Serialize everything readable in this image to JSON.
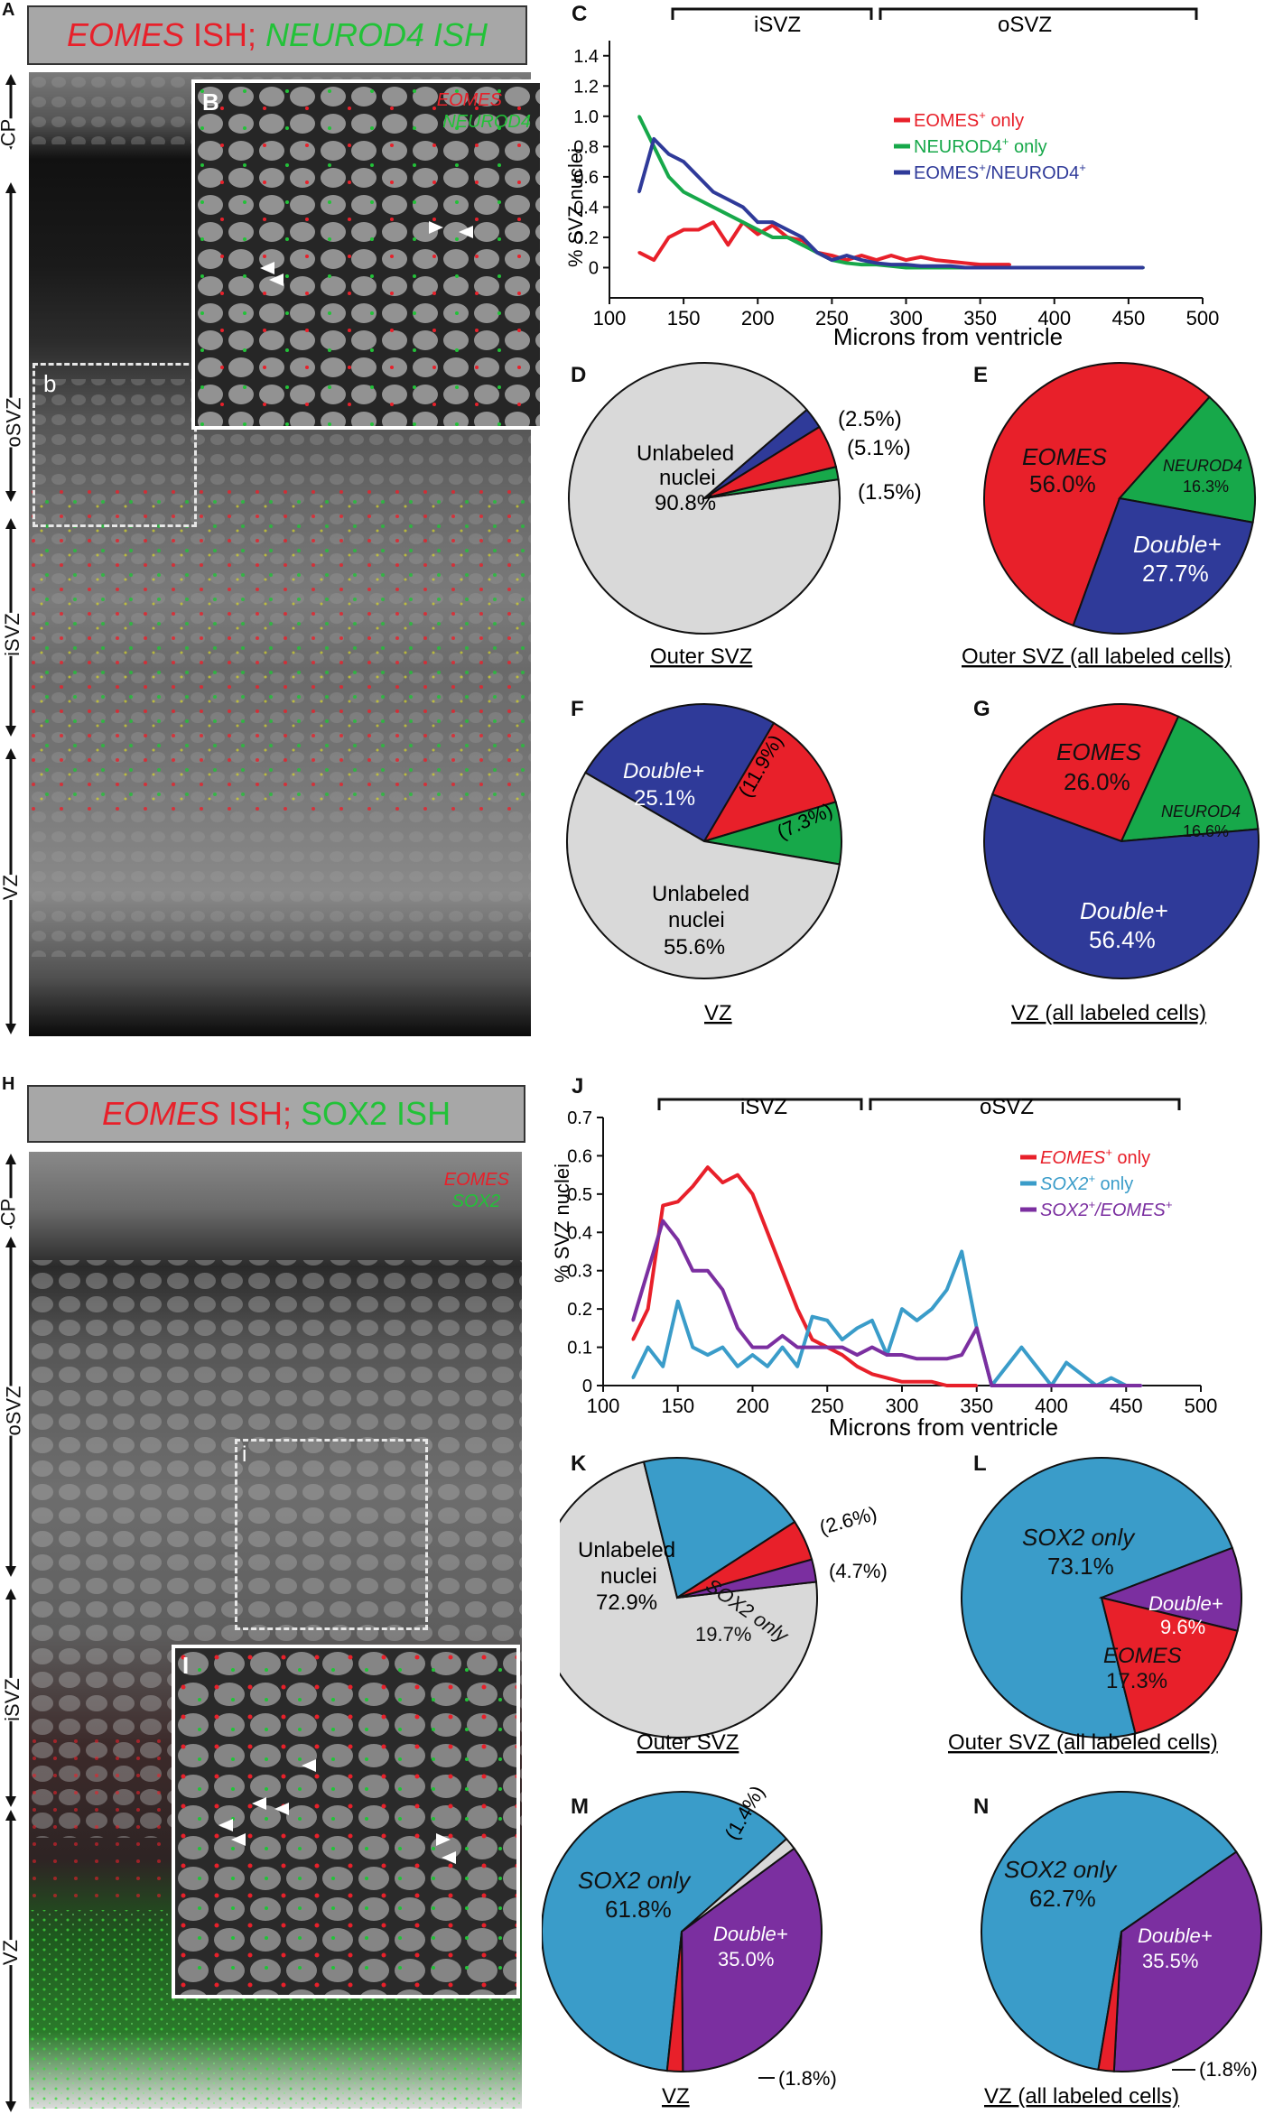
{
  "panelA": {
    "letter": "A",
    "title_part1": "EOMES",
    "title_part2": " ISH; ",
    "title_part3": "NEUROD4 ISH",
    "layers": [
      "CP",
      "oSVZ",
      "iSVZ",
      "VZ"
    ],
    "inset_box_label": "b"
  },
  "panelB": {
    "letter": "B",
    "legend_red": "EOMES",
    "legend_green": "NEUROD4"
  },
  "panelC": {
    "letter": "C",
    "region_left": "iSVZ",
    "region_right": "oSVZ",
    "ylabel": "% SVZ nuclei",
    "xlabel": "Microns from ventricle",
    "xticks": [
      "100",
      "150",
      "200",
      "250",
      "300",
      "350",
      "400",
      "450",
      "500"
    ],
    "yticks": [
      "0",
      "0.2",
      "0.4",
      "0.6",
      "0.8",
      "1.0",
      "1.2",
      "1.4"
    ],
    "legend": [
      "EOMES+ only",
      "NEUROD4+ only",
      "EOMES+/NEUROD4+"
    ]
  },
  "panelD": {
    "letter": "D",
    "unlabeled": "Unlabeled",
    "nuclei": "nuclei",
    "pct_unlabeled": "90.8%",
    "callouts": [
      "(2.5%)",
      "(5.1%)",
      "(1.5%)"
    ],
    "caption": "Outer SVZ"
  },
  "panelE": {
    "letter": "E",
    "eomes": "EOMES",
    "eomes_pct": "56.0%",
    "neurod4": "NEUROD4",
    "neurod4_pct": "16.3%",
    "double": "Double+",
    "double_pct": "27.7%",
    "caption": "Outer SVZ (all labeled cells)"
  },
  "panelF": {
    "letter": "F",
    "double": "Double+",
    "double_pct": "25.1%",
    "red_pct": "(11.9%)",
    "green_pct": "(7.3%)",
    "unlabeled": "Unlabeled",
    "nuclei": "nuclei",
    "pct_unlabeled": "55.6%",
    "caption": "VZ"
  },
  "panelG": {
    "letter": "G",
    "eomes": "EOMES",
    "eomes_pct": "26.0%",
    "neurod4": "NEUROD4",
    "neurod4_pct": "16.6%",
    "double": "Double+",
    "double_pct": "56.4%",
    "caption": "VZ (all labeled cells)"
  },
  "panelH": {
    "letter": "H",
    "title_part1": "EOMES",
    "title_part2": " ISH; ",
    "title_part3": "SOX2 ISH",
    "legend_red": "EOMES",
    "legend_green": "SOX2",
    "layers": [
      "CP",
      "oSVZ",
      "iSVZ",
      "VZ"
    ],
    "inset_box_label": "i"
  },
  "panelI": {
    "letter": "I"
  },
  "panelJ": {
    "letter": "J",
    "region_left": "iSVZ",
    "region_right": "oSVZ",
    "ylabel": "% SVZ nuclei",
    "xlabel": "Microns from ventricle",
    "xticks": [
      "100",
      "150",
      "200",
      "250",
      "300",
      "350",
      "400",
      "450",
      "500"
    ],
    "yticks": [
      "0",
      "0.1",
      "0.2",
      "0.3",
      "0.4",
      "0.5",
      "0.6",
      "0.7"
    ],
    "legend": [
      "EOMES+ only",
      "SOX2+ only",
      "SOX2+/EOMES+"
    ]
  },
  "panelK": {
    "letter": "K",
    "unlabeled": "Unlabeled",
    "nuclei": "nuclei",
    "pct_unlabeled": "72.9%",
    "sox2": "SOX2 only",
    "sox2_pct": "19.7%",
    "callouts": [
      "(2.6%)",
      "(4.7%)"
    ],
    "caption": "Outer SVZ"
  },
  "panelL": {
    "letter": "L",
    "sox2": "SOX2 only",
    "sox2_pct": "73.1%",
    "double": "Double+",
    "double_pct": "9.6%",
    "eomes": "EOMES",
    "eomes_pct": "17.3%",
    "caption": "Outer SVZ (all labeled cells)"
  },
  "panelM": {
    "letter": "M",
    "sox2": "SOX2 only",
    "sox2_pct": "61.8%",
    "double": "Double+",
    "double_pct": "35.0%",
    "grey_pct": "(1.4%)",
    "red_pct": "(1.8%)",
    "caption": "VZ"
  },
  "panelN": {
    "letter": "N",
    "sox2": "SOX2 only",
    "sox2_pct": "62.7%",
    "double": "Double+",
    "double_pct": "35.5%",
    "red_pct": "(1.8%)",
    "caption": "VZ (all labeled cells)"
  },
  "colors": {
    "red": "#e8202a",
    "green": "#17a84a",
    "blue": "#2f3a99",
    "grey": "#d9d9d9",
    "teal": "#3a9cc9",
    "purple": "#7b2fa0"
  },
  "chart_data": [
    {
      "type": "line",
      "panel": "C",
      "xlabel": "Microns from ventricle",
      "ylabel": "% SVZ nuclei",
      "xlim": [
        100,
        500
      ],
      "ylim": [
        -0.2,
        1.5
      ],
      "series": [
        {
          "name": "EOMES+ only",
          "x": [
            120,
            130,
            140,
            150,
            160,
            170,
            180,
            190,
            200,
            210,
            220,
            230,
            240,
            250,
            260,
            270,
            280,
            290,
            300,
            310,
            320,
            330,
            340,
            350,
            360,
            370
          ],
          "values": [
            0.1,
            0.05,
            0.2,
            0.25,
            0.25,
            0.3,
            0.15,
            0.3,
            0.22,
            0.28,
            0.2,
            0.18,
            0.1,
            0.08,
            0.05,
            0.08,
            0.05,
            0.08,
            0.05,
            0.07,
            0.05,
            0.04,
            0.03,
            0.02,
            0.02,
            0.02
          ]
        },
        {
          "name": "NEUROD4+ only",
          "x": [
            120,
            130,
            140,
            150,
            160,
            170,
            180,
            190,
            200,
            210,
            220,
            230,
            240,
            250,
            260,
            270,
            280,
            290,
            300,
            310,
            320,
            330,
            340,
            350,
            360,
            370,
            380,
            390,
            400,
            420,
            440,
            460
          ],
          "values": [
            1.0,
            0.8,
            0.6,
            0.5,
            0.45,
            0.4,
            0.35,
            0.3,
            0.25,
            0.2,
            0.2,
            0.15,
            0.1,
            0.05,
            0.03,
            0.02,
            0.02,
            0.01,
            0,
            0,
            0,
            0,
            0,
            0,
            0,
            0,
            0,
            0,
            0,
            0,
            0,
            0
          ]
        },
        {
          "name": "EOMES+/NEUROD4+",
          "x": [
            120,
            130,
            140,
            150,
            160,
            170,
            180,
            190,
            200,
            210,
            220,
            230,
            240,
            250,
            260,
            270,
            280,
            290,
            300,
            310,
            320,
            330,
            340,
            350,
            360,
            370,
            380,
            390,
            400,
            420,
            440,
            460
          ],
          "values": [
            0.5,
            0.85,
            0.75,
            0.7,
            0.6,
            0.5,
            0.45,
            0.4,
            0.3,
            0.3,
            0.25,
            0.2,
            0.1,
            0.05,
            0.08,
            0.05,
            0.03,
            0.02,
            0.02,
            0.01,
            0.01,
            0.01,
            0,
            0,
            0,
            0,
            0,
            0,
            0,
            0,
            0,
            0
          ]
        }
      ]
    },
    {
      "type": "pie",
      "panel": "D",
      "labels": [
        "Unlabeled nuclei",
        "EOMES+/NEUROD4+",
        "EOMES+ only",
        "NEUROD4+ only"
      ],
      "values": [
        90.8,
        2.5,
        5.1,
        1.5
      ]
    },
    {
      "type": "pie",
      "panel": "E",
      "labels": [
        "EOMES",
        "NEUROD4",
        "Double+"
      ],
      "values": [
        56.0,
        16.3,
        27.7
      ]
    },
    {
      "type": "pie",
      "panel": "F",
      "labels": [
        "Double+",
        "EOMES only",
        "NEUROD4 only",
        "Unlabeled nuclei"
      ],
      "values": [
        25.1,
        11.9,
        7.3,
        55.6
      ]
    },
    {
      "type": "pie",
      "panel": "G",
      "labels": [
        "EOMES",
        "NEUROD4",
        "Double+"
      ],
      "values": [
        26.0,
        16.6,
        56.4
      ]
    },
    {
      "type": "line",
      "panel": "J",
      "xlabel": "Microns from ventricle",
      "ylabel": "% SVZ nuclei",
      "xlim": [
        100,
        500
      ],
      "ylim": [
        0,
        0.7
      ],
      "series": [
        {
          "name": "EOMES+ only",
          "x": [
            120,
            130,
            140,
            150,
            160,
            170,
            180,
            190,
            200,
            210,
            220,
            230,
            240,
            250,
            260,
            270,
            280,
            290,
            300,
            310,
            320,
            330,
            340,
            350
          ],
          "values": [
            0.12,
            0.2,
            0.47,
            0.48,
            0.52,
            0.57,
            0.53,
            0.55,
            0.5,
            0.4,
            0.3,
            0.2,
            0.12,
            0.1,
            0.08,
            0.05,
            0.03,
            0.02,
            0.01,
            0.01,
            0.01,
            0,
            0,
            0
          ]
        },
        {
          "name": "SOX2+ only",
          "x": [
            120,
            130,
            140,
            150,
            160,
            170,
            180,
            190,
            200,
            210,
            220,
            230,
            240,
            250,
            260,
            270,
            280,
            290,
            300,
            310,
            320,
            330,
            340,
            350,
            360,
            370,
            380,
            390,
            400,
            410,
            420,
            430,
            440,
            450,
            460
          ],
          "values": [
            0.02,
            0.1,
            0.05,
            0.22,
            0.1,
            0.08,
            0.1,
            0.05,
            0.08,
            0.05,
            0.1,
            0.05,
            0.18,
            0.17,
            0.12,
            0.15,
            0.17,
            0.08,
            0.2,
            0.17,
            0.2,
            0.25,
            0.35,
            0.15,
            0,
            0.05,
            0.1,
            0.05,
            0,
            0.06,
            0.03,
            0,
            0.02,
            0,
            0
          ]
        },
        {
          "name": "SOX2+/EOMES+",
          "x": [
            120,
            130,
            140,
            150,
            160,
            170,
            180,
            190,
            200,
            210,
            220,
            230,
            240,
            250,
            260,
            270,
            280,
            290,
            300,
            310,
            320,
            330,
            340,
            350,
            360,
            370,
            380,
            390,
            400,
            420,
            440,
            460
          ],
          "values": [
            0.17,
            0.3,
            0.43,
            0.38,
            0.3,
            0.3,
            0.25,
            0.15,
            0.1,
            0.1,
            0.13,
            0.1,
            0.1,
            0.1,
            0.1,
            0.08,
            0.1,
            0.08,
            0.08,
            0.07,
            0.07,
            0.07,
            0.08,
            0.15,
            0,
            0,
            0,
            0,
            0,
            0,
            0,
            0
          ]
        }
      ]
    },
    {
      "type": "pie",
      "panel": "K",
      "labels": [
        "Unlabeled nuclei",
        "SOX2 only",
        "EOMES only",
        "Double+"
      ],
      "values": [
        72.9,
        19.7,
        4.7,
        2.6
      ]
    },
    {
      "type": "pie",
      "panel": "L",
      "labels": [
        "SOX2 only",
        "Double+",
        "EOMES"
      ],
      "values": [
        73.1,
        9.6,
        17.3
      ]
    },
    {
      "type": "pie",
      "panel": "M",
      "labels": [
        "SOX2 only",
        "Unlabeled",
        "Double+",
        "EOMES only"
      ],
      "values": [
        61.8,
        1.4,
        35.0,
        1.8
      ]
    },
    {
      "type": "pie",
      "panel": "N",
      "labels": [
        "SOX2 only",
        "Double+",
        "EOMES only"
      ],
      "values": [
        62.7,
        35.5,
        1.8
      ]
    }
  ]
}
